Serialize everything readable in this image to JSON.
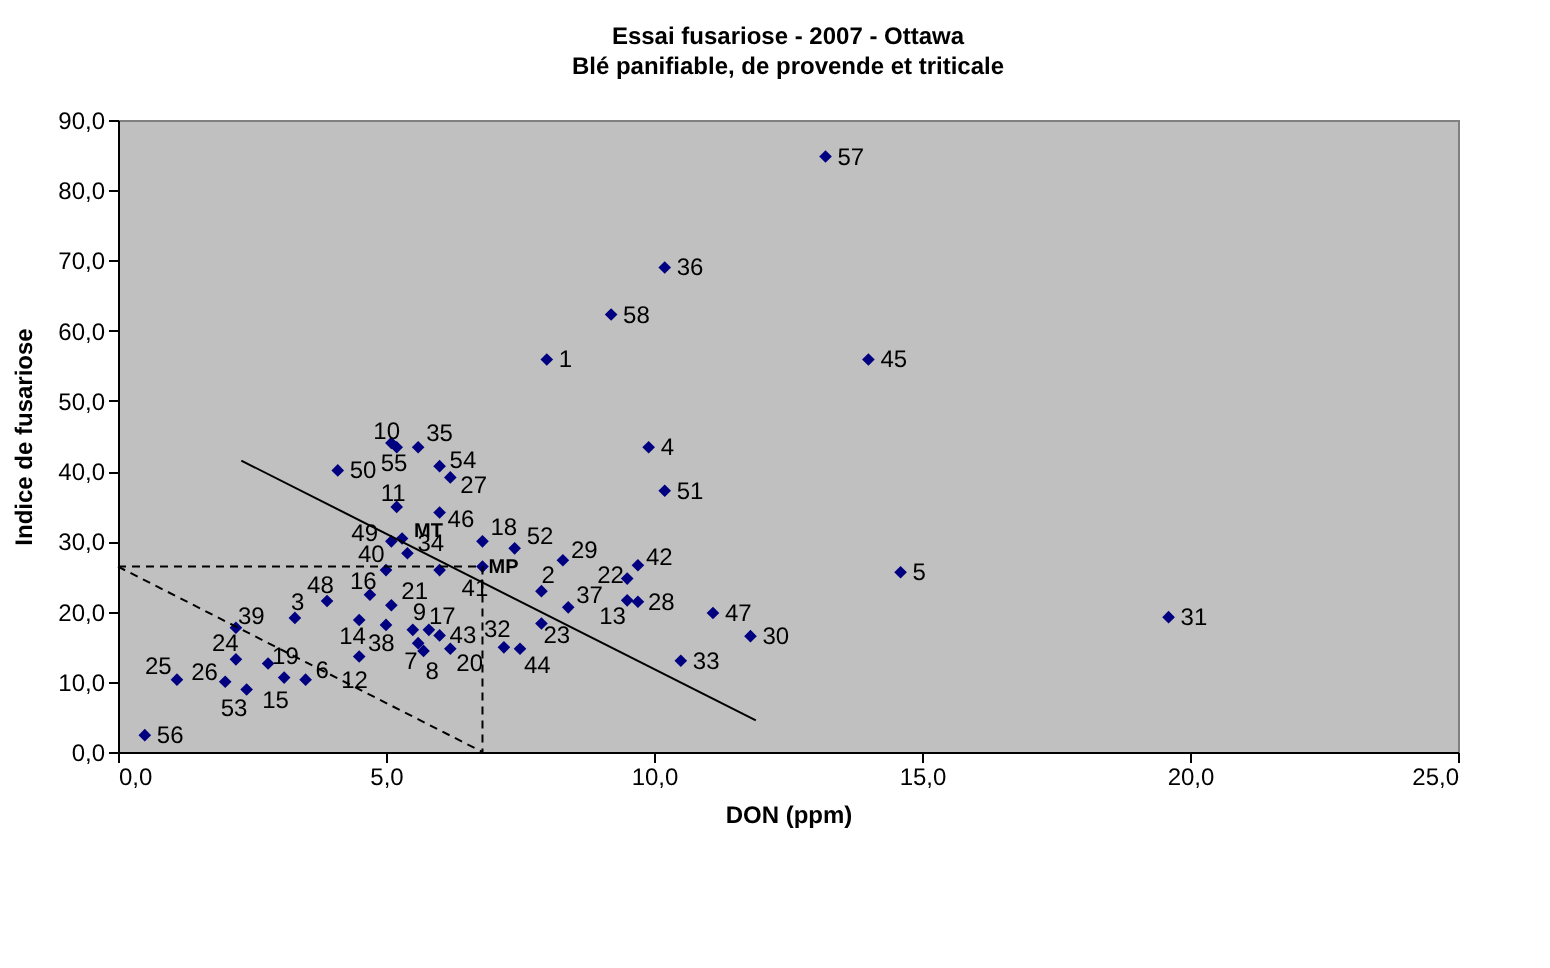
{
  "chart_data": {
    "type": "scatter",
    "title": "Essai fusariose - 2007 - Ottawa",
    "subtitle": "Blé panifiable, de provende et triticale",
    "xlabel": "DON (ppm)",
    "ylabel": "Indice de fusariose",
    "xlim": [
      0,
      25
    ],
    "ylim": [
      0,
      90
    ],
    "xticks": [
      {
        "value": 0,
        "label": "0,0"
      },
      {
        "value": 5,
        "label": "5,0"
      },
      {
        "value": 10,
        "label": "10,0"
      },
      {
        "value": 15,
        "label": "15,0"
      },
      {
        "value": 20,
        "label": "20,0"
      },
      {
        "value": 25,
        "label": "25,0"
      }
    ],
    "yticks": [
      {
        "value": 0,
        "label": "0,0"
      },
      {
        "value": 10,
        "label": "10,0"
      },
      {
        "value": 20,
        "label": "20,0"
      },
      {
        "value": 30,
        "label": "30,0"
      },
      {
        "value": 40,
        "label": "40,0"
      },
      {
        "value": 50,
        "label": "50,0"
      },
      {
        "value": 60,
        "label": "60,0"
      },
      {
        "value": 70,
        "label": "70,0"
      },
      {
        "value": 80,
        "label": "80,0"
      },
      {
        "value": 90,
        "label": "90,0"
      }
    ],
    "grid": false,
    "series": [
      {
        "type": "scatter",
        "marker": "diamond",
        "color": "#000080",
        "x": [
          0.5,
          1.1,
          2.0,
          2.4,
          2.2,
          2.2,
          2.8,
          3.1,
          3.5,
          3.3,
          3.9,
          4.5,
          4.5,
          4.7,
          5.0,
          5.1,
          5.0,
          5.1,
          5.3,
          5.4,
          5.2,
          5.1,
          5.2,
          5.6,
          6.0,
          6.2,
          6.0,
          4.1,
          5.5,
          5.6,
          5.7,
          5.8,
          6.0,
          6.2,
          6.0,
          6.8,
          6.8,
          7.2,
          7.5,
          7.4,
          7.9,
          7.9,
          8.3,
          8.4,
          9.5,
          9.7,
          9.5,
          9.7,
          11.1,
          11.8,
          10.5,
          8.0,
          9.2,
          9.9,
          10.2,
          13.2,
          10.2,
          14.0,
          14.6,
          19.6
        ],
        "values": [
          2.4,
          10.3,
          10.0,
          8.9,
          13.2,
          17.7,
          12.6,
          10.6,
          10.3,
          19.1,
          21.5,
          13.6,
          18.8,
          22.4,
          18.1,
          20.9,
          25.9,
          30.0,
          30.4,
          28.3,
          34.9,
          44.0,
          43.4,
          43.4,
          40.7,
          39.1,
          34.1,
          40.1,
          17.4,
          15.5,
          14.4,
          17.4,
          16.6,
          14.7,
          25.9,
          26.4,
          30.0,
          14.9,
          14.7,
          29.0,
          22.9,
          18.3,
          27.3,
          20.6,
          24.7,
          26.6,
          21.6,
          21.4,
          19.8,
          16.5,
          13.0,
          55.9,
          62.3,
          43.4,
          37.2,
          84.8,
          69.0,
          55.9,
          25.6,
          19.2
        ]
      },
      {
        "type": "line",
        "color": "#000000",
        "line_style": "solid",
        "marker": "none",
        "x": [
          2.3,
          11.9
        ],
        "values": [
          41.5,
          4.5
        ]
      },
      {
        "type": "line",
        "color": "#000000",
        "line_style": "dashed",
        "marker": "none",
        "x": [
          0,
          6.8
        ],
        "values": [
          26.4,
          26.4
        ]
      },
      {
        "type": "line",
        "color": "#000000",
        "line_style": "dashed",
        "marker": "none",
        "x": [
          6.8,
          6.8
        ],
        "values": [
          26.4,
          0
        ]
      },
      {
        "type": "line",
        "color": "#000000",
        "line_style": "dashed",
        "marker": "none",
        "x": [
          0,
          6.8
        ],
        "values": [
          26.4,
          0
        ]
      }
    ],
    "annotations": [
      {
        "text": "56",
        "x": 0.5,
        "y": 2.4
      },
      {
        "text": "25",
        "x": 1.1,
        "y": 10.3
      },
      {
        "text": "26",
        "x": 2.0,
        "y": 10.0
      },
      {
        "text": "53",
        "x": 2.4,
        "y": 8.9
      },
      {
        "text": "24",
        "x": 2.2,
        "y": 13.2
      },
      {
        "text": "39",
        "x": 2.2,
        "y": 17.7
      },
      {
        "text": "19",
        "x": 2.8,
        "y": 12.6
      },
      {
        "text": "15",
        "x": 3.1,
        "y": 10.6
      },
      {
        "text": "6",
        "x": 3.5,
        "y": 10.3
      },
      {
        "text": "3",
        "x": 3.3,
        "y": 19.1
      },
      {
        "text": "48",
        "x": 3.9,
        "y": 21.5
      },
      {
        "text": "12",
        "x": 4.5,
        "y": 13.6
      },
      {
        "text": "14",
        "x": 4.5,
        "y": 18.8
      },
      {
        "text": "16",
        "x": 4.7,
        "y": 22.4
      },
      {
        "text": "38",
        "x": 5.0,
        "y": 18.1
      },
      {
        "text": "21",
        "x": 5.1,
        "y": 20.9
      },
      {
        "text": "40",
        "x": 5.0,
        "y": 25.9
      },
      {
        "text": "49",
        "x": 5.1,
        "y": 30.0
      },
      {
        "text": "MT",
        "x": 5.3,
        "y": 30.4
      },
      {
        "text": "34",
        "x": 5.4,
        "y": 28.3
      },
      {
        "text": "11",
        "x": 5.2,
        "y": 34.9
      },
      {
        "text": "10",
        "x": 5.1,
        "y": 44.0
      },
      {
        "text": "55",
        "x": 5.2,
        "y": 43.4
      },
      {
        "text": "35",
        "x": 5.6,
        "y": 43.4
      },
      {
        "text": "54",
        "x": 6.0,
        "y": 40.7
      },
      {
        "text": "27",
        "x": 6.2,
        "y": 39.1
      },
      {
        "text": "46",
        "x": 6.0,
        "y": 34.1
      },
      {
        "text": "50",
        "x": 4.1,
        "y": 40.1
      },
      {
        "text": "9",
        "x": 5.5,
        "y": 17.4
      },
      {
        "text": "7",
        "x": 5.6,
        "y": 15.5
      },
      {
        "text": "8",
        "x": 5.7,
        "y": 14.4
      },
      {
        "text": "17",
        "x": 5.8,
        "y": 17.4
      },
      {
        "text": "43",
        "x": 6.0,
        "y": 16.6
      },
      {
        "text": "20",
        "x": 6.2,
        "y": 14.7
      },
      {
        "text": "41",
        "x": 6.0,
        "y": 25.9
      },
      {
        "text": "MP",
        "x": 6.8,
        "y": 26.4
      },
      {
        "text": "18",
        "x": 6.8,
        "y": 30.0
      },
      {
        "text": "32",
        "x": 7.2,
        "y": 14.9
      },
      {
        "text": "44",
        "x": 7.5,
        "y": 14.7
      },
      {
        "text": "52",
        "x": 7.4,
        "y": 29.0
      },
      {
        "text": "2",
        "x": 7.9,
        "y": 22.9
      },
      {
        "text": "23",
        "x": 7.9,
        "y": 18.3
      },
      {
        "text": "29",
        "x": 8.3,
        "y": 27.3
      },
      {
        "text": "37",
        "x": 8.4,
        "y": 20.6
      },
      {
        "text": "22",
        "x": 9.5,
        "y": 24.7
      },
      {
        "text": "42",
        "x": 9.7,
        "y": 26.6
      },
      {
        "text": "13",
        "x": 9.5,
        "y": 21.6
      },
      {
        "text": "28",
        "x": 9.7,
        "y": 21.4
      },
      {
        "text": "47",
        "x": 11.1,
        "y": 19.8
      },
      {
        "text": "30",
        "x": 11.8,
        "y": 16.5
      },
      {
        "text": "33",
        "x": 10.5,
        "y": 13.0
      },
      {
        "text": "1",
        "x": 8.0,
        "y": 55.9
      },
      {
        "text": "58",
        "x": 9.2,
        "y": 62.3
      },
      {
        "text": "4",
        "x": 9.9,
        "y": 43.4
      },
      {
        "text": "51",
        "x": 10.2,
        "y": 37.2
      },
      {
        "text": "57",
        "x": 13.2,
        "y": 84.8
      },
      {
        "text": "36",
        "x": 10.2,
        "y": 69.0
      },
      {
        "text": "45",
        "x": 14.0,
        "y": 55.9
      },
      {
        "text": "5",
        "x": 14.6,
        "y": 25.6
      },
      {
        "text": "31",
        "x": 19.6,
        "y": 19.2
      }
    ]
  }
}
